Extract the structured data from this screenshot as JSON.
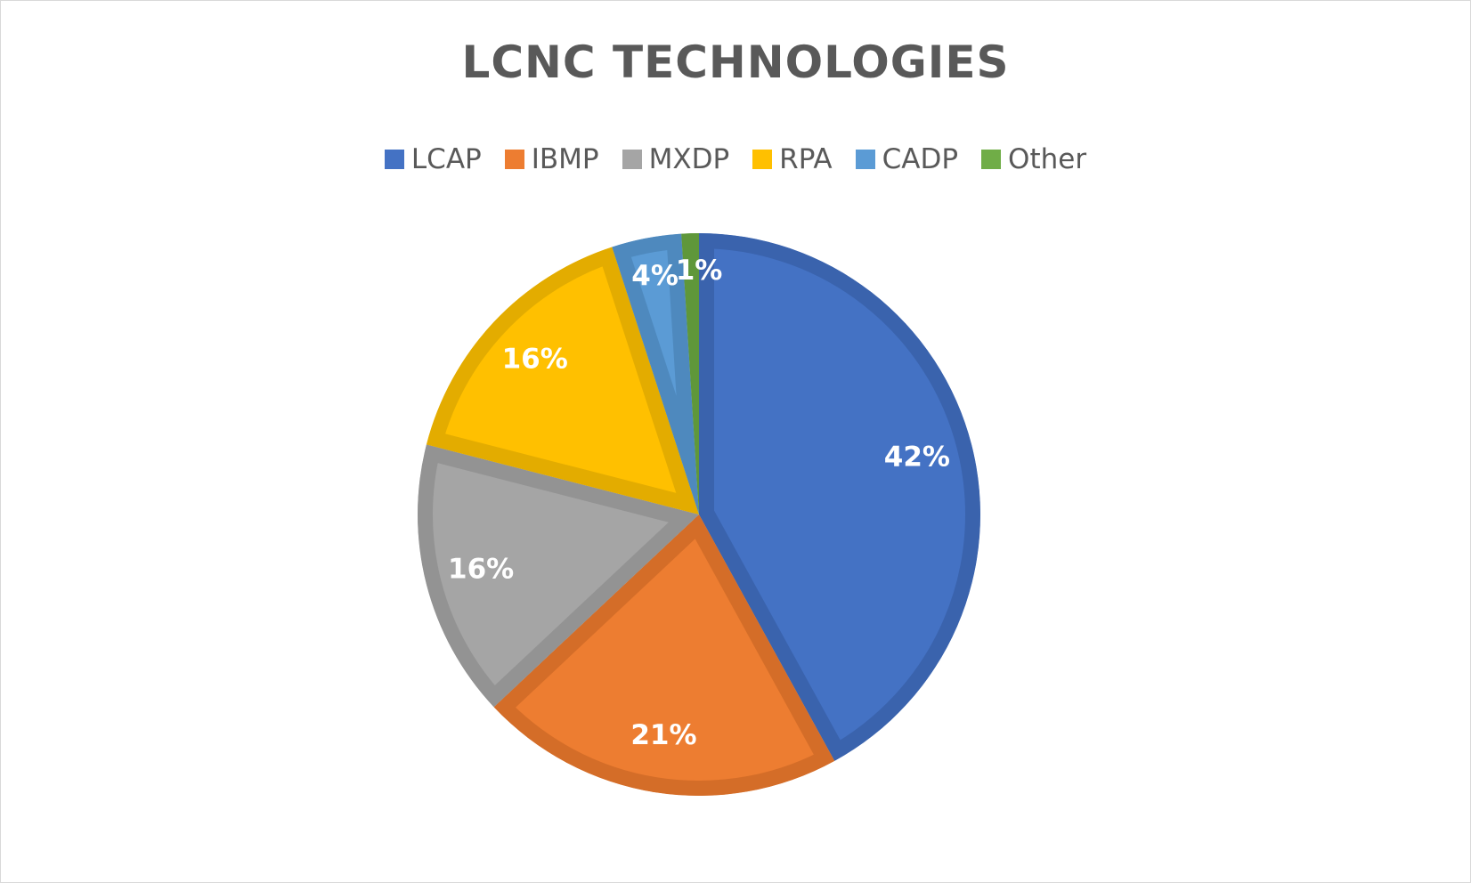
{
  "chart_data": {
    "type": "pie",
    "title": "LCNC TECHNOLOGIES",
    "categories": [
      "LCAP",
      "IBMP",
      "MXDP",
      "RPA",
      "CADP",
      "Other"
    ],
    "values": [
      42,
      21,
      16,
      16,
      4,
      1
    ],
    "data_labels": [
      "42%",
      "21%",
      "16%",
      "16%",
      "4%",
      "1%"
    ],
    "colors": [
      "#4472C4",
      "#ED7D31",
      "#A5A5A5",
      "#FFC000",
      "#5B9BD5",
      "#70AD47"
    ],
    "border_colors": [
      "#3A63AD",
      "#D46D28",
      "#939393",
      "#E3AC00",
      "#4E89BE",
      "#5F973A"
    ],
    "legend_position": "top",
    "start_angle": "12 o'clock, clockwise"
  }
}
